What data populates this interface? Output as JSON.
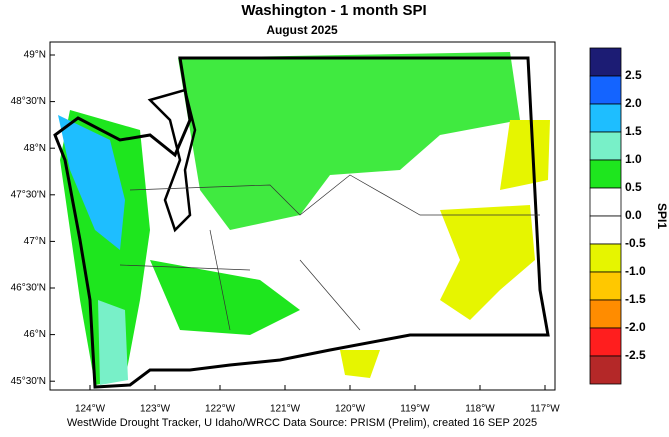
{
  "header": {
    "title": "Washington - 1 month SPI",
    "subtitle": "August 2025"
  },
  "map": {
    "latitude_labels": [
      "49°N",
      "48°30'N",
      "48°N",
      "47°30'N",
      "47°N",
      "46°30'N",
      "46°N",
      "45°30'N"
    ],
    "longitude_labels": [
      "124°W",
      "123°W",
      "122°W",
      "121°W",
      "120°W",
      "119°W",
      "118°W",
      "117°W"
    ]
  },
  "legend": {
    "title": "SPI1",
    "colors": [
      "#1c1c74",
      "#1464ff",
      "#1ebeff",
      "#78f0c8",
      "#1ee61e",
      "#ffffff",
      "#ffffff",
      "#e6f500",
      "#ffc800",
      "#ff8c00",
      "#ff1e1e",
      "#b42828"
    ],
    "labels": [
      "2.5",
      "2.0",
      "1.5",
      "1.0",
      "0.5",
      "0.0",
      "-0.5",
      "-1.0",
      "-1.5",
      "-2.0",
      "-2.5"
    ]
  },
  "footer": {
    "credit": "WestWide Drought Tracker, U Idaho/WRCC Data Source: PRISM (Prelim), created 16 SEP 2025"
  }
}
